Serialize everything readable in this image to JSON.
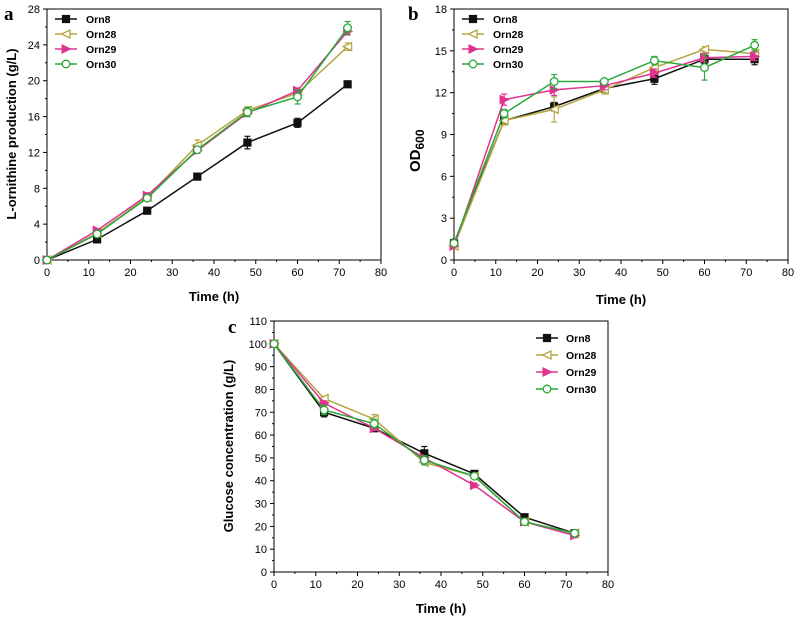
{
  "colors": {
    "Orn8": "#111111",
    "Orn28": "#b5a642",
    "Orn29": "#e0338f",
    "Orn30": "#2aa83a"
  },
  "chart_data": [
    {
      "id": "a",
      "panel_label": "a",
      "type": "line",
      "xlabel": "Time (h)",
      "ylabel": "L-ornithine production (g/L)",
      "xlim": [
        0,
        80
      ],
      "ylim": [
        0,
        28
      ],
      "xticks": [
        0,
        10,
        20,
        30,
        40,
        50,
        60,
        70,
        80
      ],
      "yticks": [
        0,
        4,
        8,
        12,
        16,
        20,
        24,
        28
      ],
      "legend_position": "top-left",
      "x": [
        0,
        12,
        24,
        36,
        48,
        60,
        72
      ],
      "series": [
        {
          "name": "Orn8",
          "marker": "square",
          "values": [
            0,
            2.3,
            5.5,
            9.3,
            13.1,
            15.3,
            19.6
          ],
          "errors": [
            0,
            0.2,
            0.2,
            0.2,
            0.7,
            0.5,
            0.2
          ]
        },
        {
          "name": "Orn28",
          "marker": "diamond-left",
          "values": [
            0,
            3.0,
            7.0,
            12.8,
            16.7,
            18.6,
            23.8
          ],
          "errors": [
            0,
            0.3,
            0.4,
            0.6,
            0.4,
            0.4,
            0.4
          ]
        },
        {
          "name": "Orn29",
          "marker": "triangle-right",
          "values": [
            0,
            3.3,
            7.2,
            12.2,
            16.4,
            18.9,
            25.5
          ],
          "errors": [
            0,
            0.2,
            0.3,
            0.3,
            0.4,
            0.3,
            0.4
          ]
        },
        {
          "name": "Orn30",
          "marker": "circle",
          "values": [
            0,
            2.9,
            6.9,
            12.3,
            16.5,
            18.2,
            25.9
          ],
          "errors": [
            0,
            0.2,
            0.3,
            0.3,
            0.5,
            0.8,
            0.7
          ]
        }
      ]
    },
    {
      "id": "b",
      "panel_label": "b",
      "type": "line",
      "xlabel": "Time (h)",
      "ylabel": "OD",
      "ylabel_sub": "600",
      "xlim": [
        0,
        80
      ],
      "ylim": [
        0,
        18
      ],
      "xticks": [
        0,
        10,
        20,
        30,
        40,
        50,
        60,
        70,
        80
      ],
      "yticks": [
        0,
        3,
        6,
        9,
        12,
        15,
        18
      ],
      "legend_position": "top-left",
      "x": [
        0,
        12,
        24,
        36,
        48,
        60,
        72
      ],
      "series": [
        {
          "name": "Orn8",
          "marker": "square",
          "values": [
            1.2,
            10.0,
            11.0,
            12.3,
            13.0,
            14.4,
            14.4
          ],
          "errors": [
            0,
            0.3,
            0.3,
            0.2,
            0.4,
            0.3,
            0.4
          ]
        },
        {
          "name": "Orn28",
          "marker": "diamond-left",
          "values": [
            1.0,
            10.0,
            10.8,
            12.2,
            13.8,
            15.1,
            14.8
          ],
          "errors": [
            0,
            0.3,
            0.9,
            0.3,
            0.3,
            0.2,
            0.3
          ]
        },
        {
          "name": "Orn29",
          "marker": "triangle-right",
          "values": [
            1.0,
            11.5,
            12.2,
            12.5,
            13.4,
            14.5,
            14.6
          ],
          "errors": [
            0,
            0.4,
            0.4,
            0.3,
            0.3,
            0.3,
            0.3
          ]
        },
        {
          "name": "Orn30",
          "marker": "circle",
          "values": [
            1.2,
            10.5,
            12.8,
            12.8,
            14.3,
            13.8,
            15.4
          ],
          "errors": [
            0,
            0.3,
            0.5,
            0.2,
            0.3,
            0.9,
            0.4
          ]
        }
      ]
    },
    {
      "id": "c",
      "panel_label": "c",
      "type": "line",
      "xlabel": "Time (h)",
      "ylabel": "Glucose concentration (g/L)",
      "xlim": [
        0,
        80
      ],
      "ylim": [
        0,
        110
      ],
      "xticks": [
        0,
        10,
        20,
        30,
        40,
        50,
        60,
        70,
        80
      ],
      "yticks": [
        0,
        10,
        20,
        30,
        40,
        50,
        60,
        70,
        80,
        90,
        100,
        110
      ],
      "legend_position": "top-right",
      "x": [
        0,
        12,
        24,
        36,
        48,
        60,
        72
      ],
      "series": [
        {
          "name": "Orn8",
          "marker": "square",
          "values": [
            100,
            70,
            63,
            52,
            43,
            24,
            17
          ],
          "errors": [
            0,
            2,
            1,
            3,
            1,
            1,
            1
          ]
        },
        {
          "name": "Orn28",
          "marker": "diamond-left",
          "values": [
            100,
            76,
            67,
            48,
            42,
            22,
            17
          ],
          "errors": [
            0,
            1,
            2,
            1,
            1,
            1,
            1
          ]
        },
        {
          "name": "Orn29",
          "marker": "triangle-right",
          "values": [
            100,
            74,
            63,
            50,
            38,
            22,
            16
          ],
          "errors": [
            0,
            1,
            1,
            1,
            1,
            1,
            1
          ]
        },
        {
          "name": "Orn30",
          "marker": "circle",
          "values": [
            100,
            71,
            65,
            49,
            42,
            22,
            17
          ],
          "errors": [
            0,
            2,
            2,
            2,
            1,
            1,
            1
          ]
        }
      ]
    }
  ]
}
